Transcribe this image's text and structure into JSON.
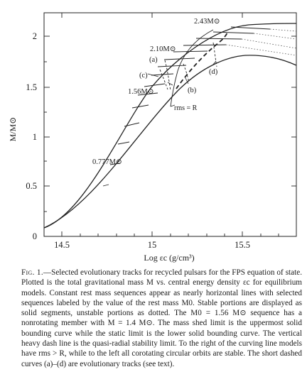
{
  "figure": {
    "x_axis_label": "Log εc (g/cm³)",
    "y_axis_label": "M/M⊙",
    "x_ticks": [
      "14.5",
      "15",
      "15.5"
    ],
    "y_ticks": [
      "0",
      "0.5",
      "1",
      "1.5",
      "2"
    ],
    "sequence_labels": [
      "2.43M⊙",
      "2.10M⊙",
      "1.56M⊙",
      "0.777M⊙"
    ],
    "track_labels": [
      "(a)",
      "(b)",
      "(c)",
      "(d)"
    ],
    "radius_label": "rms = R"
  },
  "chart_data": {
    "type": "line",
    "xlabel": "Log εc (g/cm³)",
    "ylabel": "M/M⊙",
    "xlim": [
      14.4,
      15.8
    ],
    "ylim": [
      0,
      2.2
    ],
    "series": [
      {
        "x": [
          14.4,
          14.5,
          14.6,
          14.7,
          14.8,
          14.9,
          15.0,
          15.1,
          15.2,
          15.3,
          15.4,
          15.5,
          15.6,
          15.7,
          15.8
        ],
        "y": [
          0.09,
          0.22,
          0.4,
          0.62,
          0.88,
          1.14,
          1.42,
          1.63,
          1.8,
          1.93,
          2.04,
          2.11,
          2.13,
          2.12,
          2.1
        ]
      },
      {
        "x": [
          14.4,
          14.5,
          14.6,
          14.7,
          14.8,
          14.9,
          15.0,
          15.1,
          15.2,
          15.3,
          15.4,
          15.5,
          15.6,
          15.7,
          15.8
        ],
        "y": [
          0.09,
          0.17,
          0.28,
          0.41,
          0.58,
          0.79,
          1.03,
          1.28,
          1.5,
          1.67,
          1.77,
          1.81,
          1.8,
          1.75,
          1.68
        ]
      }
    ],
    "sequences": [
      {
        "rest_mass": "2.43M⊙",
        "x": [
          15.3,
          15.78
        ],
        "y": [
          2.07,
          2.06
        ]
      },
      {
        "rest_mass": "2.10M⊙",
        "x": [
          15.14,
          15.55
        ],
        "y": [
          1.77,
          1.8
        ]
      },
      {
        "rest_mass": "1.56M⊙",
        "x": [
          14.96,
          15.28
        ],
        "y": [
          1.41,
          1.43
        ]
      },
      {
        "rest_mass": "0.777M⊙",
        "x": [
          14.8,
          14.9
        ],
        "y": [
          0.75,
          0.78
        ]
      }
    ]
  },
  "caption": {
    "label": "Fig. 1.",
    "text": "—Selected evolutionary tracks for recycled pulsars for the FPS equation of state. Plotted is the total gravitational mass M vs. central energy density εc for equilibrium models. Constant rest mass sequences appear as nearly horizontal lines with selected sequences labeled by the value of the rest mass M0. Stable portions are displayed as solid segments, unstable portions as dotted. The M0 = 1.56 M⊙ sequence has a nonrotating member with M = 1.4 M⊙. The mass shed limit is the uppermost solid bounding curve while the static limit is the lower solid bounding curve. The vertical heavy dash line is the quasi-radial stability limit. To the right of the curving line models have rms > R, while to the left all corotating circular orbits are stable. The short dashed curves (a)–(d) are evolutionary tracks (see text)."
  }
}
